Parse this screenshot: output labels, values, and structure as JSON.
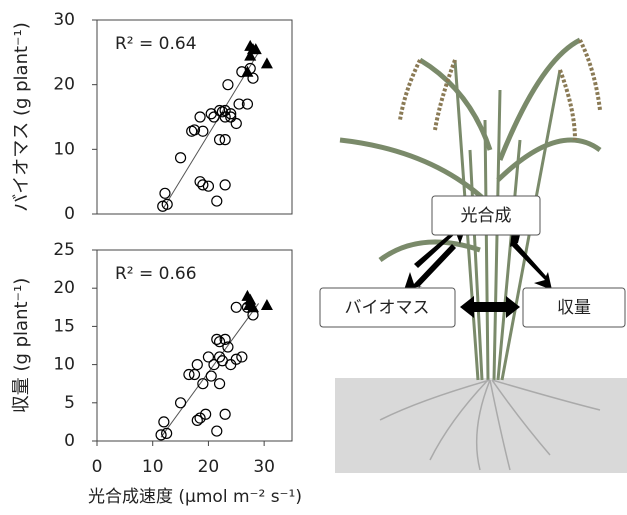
{
  "chart_data": [
    {
      "type": "scatter",
      "ylabel": "バイオマス (g plant⁻¹)",
      "annotation": "R² = 0.64",
      "xlim": [
        0,
        35
      ],
      "ylim": [
        0,
        30
      ],
      "yticks": [
        0,
        10,
        20,
        30
      ],
      "series": [
        {
          "marker": "circle",
          "color": "#000000",
          "x": [
            11.8,
            12.2,
            12.6,
            15,
            17,
            17.5,
            18.5,
            19,
            18.5,
            19,
            20,
            20.5,
            21,
            22,
            22.5,
            23,
            22,
            23,
            21.5,
            23,
            23,
            24,
            24,
            23.5,
            25,
            25.5,
            27,
            28,
            26,
            27.5
          ],
          "y": [
            1.2,
            3.2,
            1.5,
            8.7,
            12.8,
            13,
            15,
            12.8,
            5,
            4.5,
            4.3,
            15.5,
            15,
            16,
            15.8,
            16,
            11.5,
            11.5,
            2,
            4.5,
            15,
            15.5,
            15,
            20,
            14,
            17,
            17,
            21,
            22,
            22.5
          ]
        },
        {
          "marker": "triangle",
          "color": "#000000",
          "x": [
            27,
            27.5,
            28,
            27.5,
            28.5,
            30.5
          ],
          "y": [
            22,
            24.5,
            25.5,
            26,
            25.5,
            23.3
          ]
        }
      ],
      "fit": {
        "x": [
          12,
          29
        ],
        "y": [
          1,
          25
        ]
      }
    },
    {
      "type": "scatter",
      "ylabel": "収量 (g plant⁻¹)",
      "xlabel": "光合成速度 (μmol m⁻² s⁻¹)",
      "annotation": "R² = 0.66",
      "xlim": [
        0,
        35
      ],
      "ylim": [
        0,
        25
      ],
      "xticks": [
        0,
        10,
        20,
        30
      ],
      "yticks": [
        0,
        5,
        10,
        15,
        20,
        25
      ],
      "series": [
        {
          "marker": "circle",
          "color": "#000000",
          "x": [
            11.5,
            12,
            12.5,
            15,
            16.5,
            17.5,
            18,
            19,
            18,
            18.5,
            19.5,
            20,
            21,
            21.5,
            22,
            22.5,
            23,
            22,
            21.5,
            23,
            23.5,
            24,
            25,
            26,
            25,
            27,
            28,
            22,
            20.5
          ],
          "y": [
            0.8,
            2.5,
            1,
            5,
            8.7,
            8.7,
            10,
            7.5,
            2.7,
            3,
            3.5,
            11,
            10,
            13.3,
            13,
            10.5,
            13.3,
            7.5,
            1.3,
            3.5,
            12.3,
            10,
            10.7,
            11,
            17.5,
            17.5,
            16.5,
            11,
            8.5
          ]
        },
        {
          "marker": "triangle",
          "color": "#000000",
          "x": [
            27,
            27.5,
            28,
            27.3,
            30.5
          ],
          "y": [
            19,
            18.5,
            17.5,
            17.8,
            17.8
          ]
        }
      ],
      "fit": {
        "x": [
          11.5,
          29
        ],
        "y": [
          0.5,
          18
        ]
      }
    }
  ],
  "diagram": {
    "labels": [
      "光合成",
      "バイオマス",
      "収量"
    ]
  }
}
